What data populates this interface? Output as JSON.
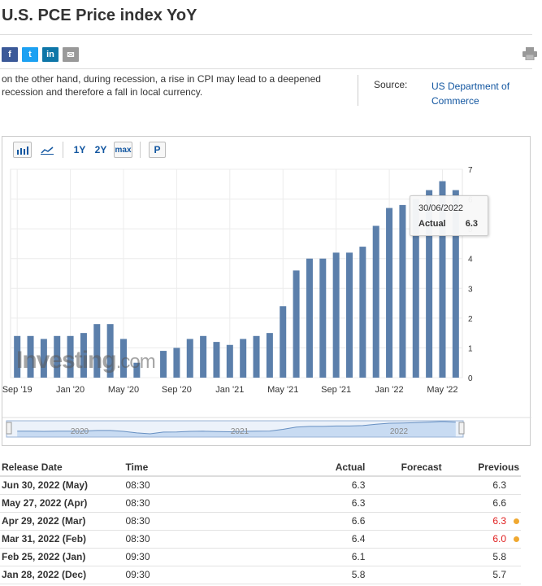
{
  "header": {
    "title": "U.S. PCE Price index YoY"
  },
  "share": {
    "facebook": "f",
    "twitter": "t",
    "linkedin": "in",
    "email": "✉"
  },
  "description": {
    "text": "on the other hand, during recession, a rise in CPI may lead to a deepened recession and therefore a fall in local currency."
  },
  "source": {
    "label": "Source:",
    "value": "US Department of Commerce"
  },
  "toolbar": {
    "bar_icon": "bar-chart-icon",
    "line_icon": "line-chart-icon",
    "range_1y": "1Y",
    "range_2y": "2Y",
    "range_max": "max",
    "pin": "P"
  },
  "chart_data": {
    "type": "bar",
    "categories": [
      "Sep '19",
      "Oct '19",
      "Nov '19",
      "Dec '19",
      "Jan '20",
      "Feb '20",
      "Mar '20",
      "Apr '20",
      "May '20",
      "Jun '20",
      "Jul '20",
      "Aug '20",
      "Sep '20",
      "Oct '20",
      "Nov '20",
      "Dec '20",
      "Jan '21",
      "Feb '21",
      "Mar '21",
      "Apr '21",
      "May '21",
      "Jun '21",
      "Jul '21",
      "Aug '21",
      "Sep '21",
      "Oct '21",
      "Nov '21",
      "Dec '21",
      "Jan '22",
      "Feb '22",
      "Mar '22",
      "Apr '22",
      "May '22",
      "Jun '22"
    ],
    "values": [
      1.4,
      1.4,
      1.3,
      1.4,
      1.4,
      1.5,
      1.8,
      1.8,
      1.3,
      0.5,
      0,
      0.9,
      1.0,
      1.3,
      1.4,
      1.2,
      1.1,
      1.3,
      1.4,
      1.5,
      2.4,
      3.6,
      4.0,
      4.0,
      4.2,
      4.2,
      4.4,
      5.1,
      5.7,
      5.8,
      6.0,
      6.3,
      6.6,
      6.3
    ],
    "x_tick_labels": [
      "Sep '19",
      "Jan '20",
      "May '20",
      "Sep '20",
      "Jan '21",
      "May '21",
      "Sep '21",
      "Jan '22",
      "May '22"
    ],
    "y_ticks": [
      "0",
      "1",
      "2",
      "3",
      "4",
      "5",
      "6",
      "7"
    ],
    "ylim": [
      0,
      7
    ],
    "grid": true,
    "color": "#5b7fab",
    "navigator_labels": [
      "2020",
      "2021",
      "2022"
    ],
    "tooltip": {
      "date": "30/06/2022",
      "label": "Actual",
      "value": "6.3"
    },
    "watermark": {
      "main": "Investing",
      "suffix": ".com"
    }
  },
  "table": {
    "headers": {
      "date": "Release Date",
      "time": "Time",
      "actual": "Actual",
      "forecast": "Forecast",
      "previous": "Previous"
    },
    "rows": [
      {
        "date": "Jun 30, 2022 (May)",
        "time": "08:30",
        "actual": "6.3",
        "forecast": "",
        "previous": "6.3",
        "revised": false
      },
      {
        "date": "May 27, 2022 (Apr)",
        "time": "08:30",
        "actual": "6.3",
        "forecast": "",
        "previous": "6.6",
        "revised": false
      },
      {
        "date": "Apr 29, 2022 (Mar)",
        "time": "08:30",
        "actual": "6.6",
        "forecast": "",
        "previous": "6.3",
        "revised": true
      },
      {
        "date": "Mar 31, 2022 (Feb)",
        "time": "08:30",
        "actual": "6.4",
        "forecast": "",
        "previous": "6.0",
        "revised": true
      },
      {
        "date": "Feb 25, 2022 (Jan)",
        "time": "09:30",
        "actual": "6.1",
        "forecast": "",
        "previous": "5.8",
        "revised": false
      },
      {
        "date": "Jan 28, 2022 (Dec)",
        "time": "09:30",
        "actual": "5.8",
        "forecast": "",
        "previous": "5.7",
        "revised": false
      }
    ]
  }
}
